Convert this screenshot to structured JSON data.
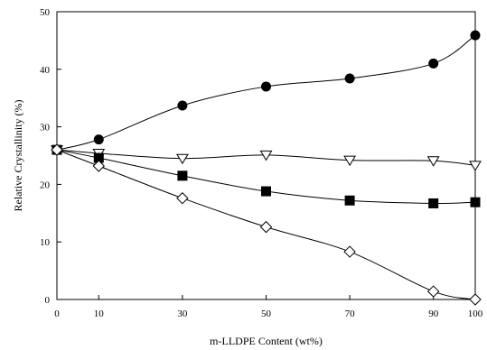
{
  "chart_data": {
    "type": "scatter",
    "xlabel": "m-LLDPE Content (wt%)",
    "ylabel": "Relative Crystallinity (%)",
    "xlim": [
      0,
      100
    ],
    "ylim": [
      0,
      50
    ],
    "x_ticks": [
      0,
      10,
      30,
      50,
      70,
      90,
      100
    ],
    "y_ticks": [
      0,
      10,
      20,
      30,
      40,
      50
    ],
    "grid": false,
    "legend": "none",
    "series": [
      {
        "marker": "filled-circle",
        "x": [
          0,
          10,
          30,
          50,
          70,
          90,
          100
        ],
        "y": [
          26,
          27.8,
          33.7,
          37,
          38.4,
          41,
          45.9
        ]
      },
      {
        "marker": "open-triangle-down",
        "x": [
          0,
          10,
          30,
          50,
          70,
          90,
          100
        ],
        "y": [
          26,
          25.4,
          24.5,
          25.1,
          24.2,
          24.1,
          23.3
        ]
      },
      {
        "marker": "filled-square",
        "x": [
          0,
          10,
          30,
          50,
          70,
          90,
          100
        ],
        "y": [
          26,
          24.6,
          21.5,
          18.8,
          17.2,
          16.7,
          16.9
        ]
      },
      {
        "marker": "open-diamond",
        "x": [
          0,
          10,
          30,
          50,
          70,
          90,
          100
        ],
        "y": [
          26,
          23.2,
          17.6,
          12.6,
          8.3,
          1.4,
          0
        ]
      }
    ],
    "colors": {
      "ink": "#000000",
      "background": "#ffffff"
    }
  }
}
